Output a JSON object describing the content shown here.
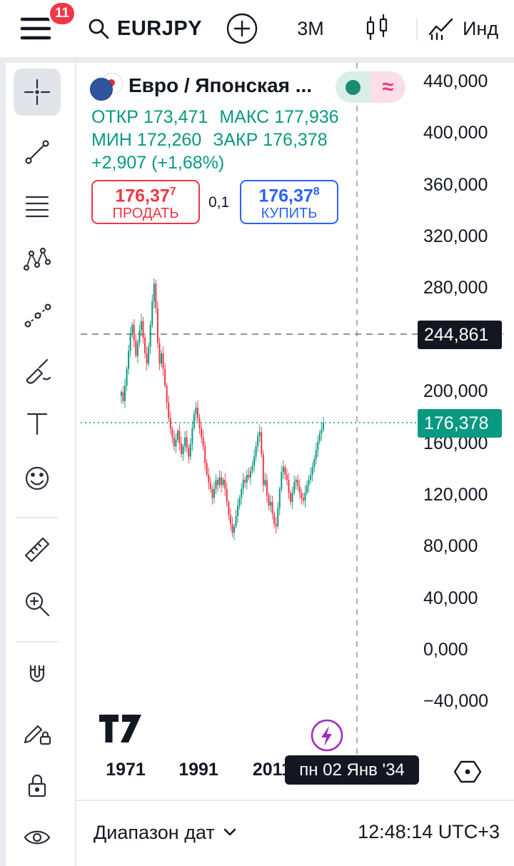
{
  "topbar": {
    "menu_badge": "11",
    "symbol": "EURJPY",
    "interval": "3M",
    "indicators_label": "Инд"
  },
  "toolbar": {
    "tools": [
      {
        "name": "crosshair",
        "selected": true
      },
      {
        "name": "trend-line"
      },
      {
        "name": "horizontal-lines"
      },
      {
        "name": "xabcd-pattern"
      },
      {
        "name": "forecast"
      },
      {
        "name": "brush"
      },
      {
        "name": "text"
      },
      {
        "name": "emoji"
      },
      {
        "name": "ruler"
      },
      {
        "name": "zoom-in"
      },
      {
        "name": "magnet"
      },
      {
        "name": "draw-lock"
      },
      {
        "name": "lock-all"
      },
      {
        "name": "hide-all"
      }
    ]
  },
  "chart": {
    "symbol_title": "Евро / Японская ...",
    "status_wave": "≈",
    "ohlc": {
      "open_label": "ОТКР",
      "open": "173,471",
      "high_label": "МАКС",
      "high": "177,936",
      "low_label": "МИН",
      "low": "172,260",
      "close_label": "ЗАКР",
      "close": "176,378"
    },
    "change": "+2,907 (+1,68%)",
    "sell": {
      "value_main": "176,37",
      "value_sup": "7",
      "label": "ПРОДАТЬ"
    },
    "spread": "0,1",
    "buy": {
      "value_main": "176,37",
      "value_sup": "8",
      "label": "КУПИТЬ"
    },
    "crosshair_price": "244,861",
    "last_price": "176,378",
    "crosshair_date": "пн 02 Янв '34",
    "price_axis": [
      "440,000",
      "400,000",
      "360,000",
      "320,000",
      "280,000",
      "200,000",
      "160,000",
      "120,000",
      "80,000",
      "40,000",
      "0,000",
      "−40,000"
    ],
    "time_axis": [
      "1971",
      "1991",
      "2011"
    ]
  },
  "bottombar": {
    "range_label": "Диапазон дат",
    "clock": "12:48:14 UTC+3"
  },
  "colors": {
    "up": "#089981",
    "down": "#f23645",
    "buy": "#2962ff",
    "sell": "#f23645",
    "accent_purple": "#a32cc4",
    "label_dark": "#131722"
  },
  "chart_data": {
    "type": "candlestick",
    "symbol": "EURJPY",
    "timeframe": "3M",
    "x_start_year": 1970,
    "x_step_years": 0.5,
    "x_ticks": [
      1971,
      1991,
      2011
    ],
    "y_ticks": [
      440,
      400,
      360,
      320,
      280,
      200,
      160,
      120,
      80,
      40,
      0,
      -40
    ],
    "ylim": [
      -60,
      470
    ],
    "last_price": 176.378,
    "crosshair_price": 244.861,
    "closes": [
      200,
      193,
      205,
      218,
      232,
      245,
      252,
      240,
      228,
      238,
      248,
      255,
      242,
      230,
      222,
      235,
      252,
      270,
      284,
      265,
      238,
      222,
      230,
      218,
      205,
      192,
      180,
      172,
      165,
      158,
      163,
      170,
      160,
      152,
      158,
      165,
      157,
      150,
      160,
      172,
      183,
      188,
      180,
      172,
      165,
      158,
      145,
      136,
      130,
      125,
      118,
      125,
      132,
      128,
      134,
      128,
      132,
      125,
      115,
      105,
      98,
      91,
      96,
      104,
      112,
      118,
      125,
      132,
      130,
      136,
      134,
      139,
      143,
      150,
      158,
      166,
      169,
      152,
      128,
      132,
      120,
      112,
      115,
      106,
      98,
      96,
      110,
      125,
      138,
      142,
      136,
      132,
      122,
      115,
      122,
      130,
      132,
      127,
      122,
      118,
      116,
      122,
      128,
      132,
      136,
      142,
      148,
      155,
      162,
      168,
      171,
      176.378
    ]
  }
}
